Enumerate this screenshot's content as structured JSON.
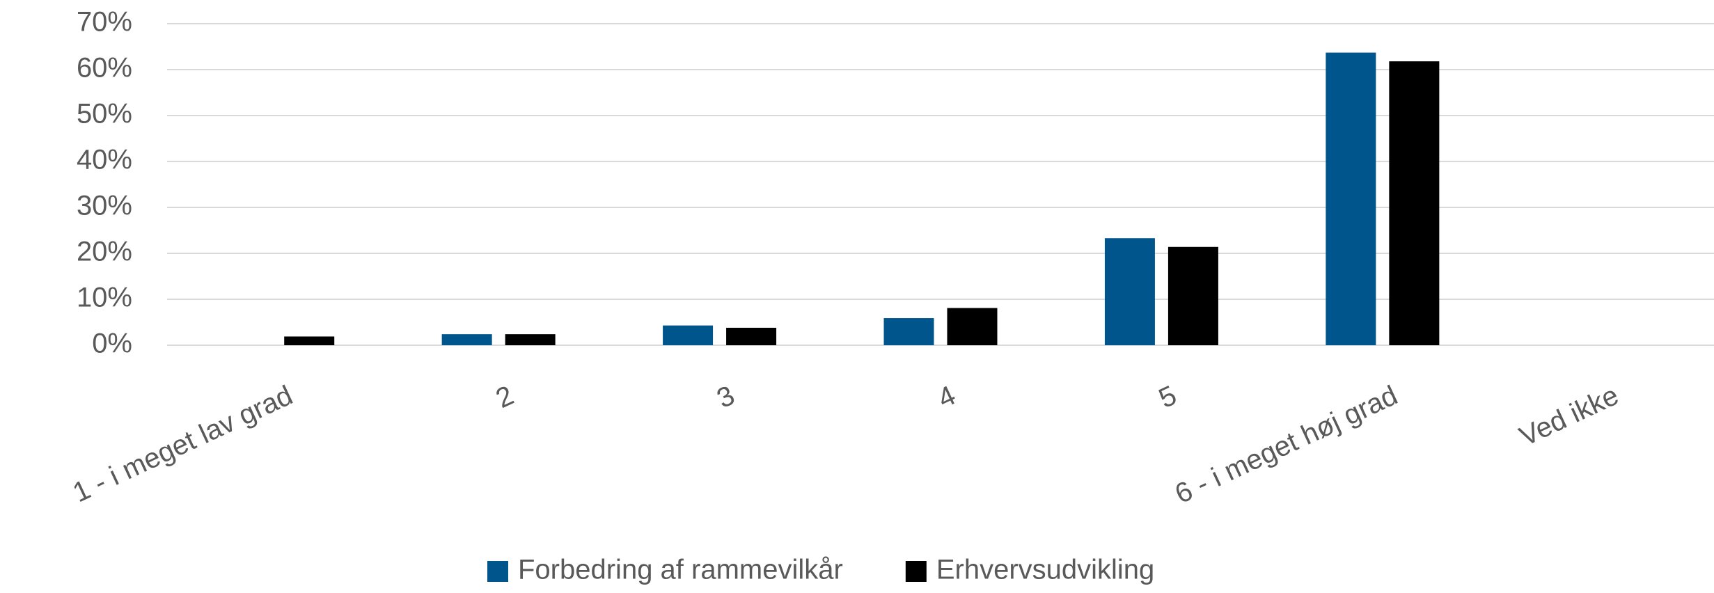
{
  "chart_data": {
    "type": "bar",
    "categories": [
      "1 - i meget lav grad",
      "2",
      "3",
      "4",
      "5",
      "6 - i meget høj grad",
      "Ved ikke"
    ],
    "series": [
      {
        "name": "Forbedring af rammevilkår",
        "color": "#00558c",
        "values": [
          0,
          2.4,
          4.3,
          5.9,
          23.3,
          63.7,
          0
        ]
      },
      {
        "name": "Erhvervsudvikling",
        "color": "#000000",
        "values": [
          1.9,
          2.4,
          3.8,
          8.1,
          21.4,
          61.8,
          0
        ]
      }
    ],
    "ylim": [
      0,
      70
    ],
    "yticks": [
      {
        "value": 0,
        "label": "0%"
      },
      {
        "value": 10,
        "label": "10%"
      },
      {
        "value": 20,
        "label": "20%"
      },
      {
        "value": 30,
        "label": "30%"
      },
      {
        "value": 40,
        "label": "40%"
      },
      {
        "value": 50,
        "label": "50%"
      },
      {
        "value": 60,
        "label": "60%"
      },
      {
        "value": 70,
        "label": "70%"
      }
    ],
    "grid": true,
    "legend": "bottom"
  }
}
